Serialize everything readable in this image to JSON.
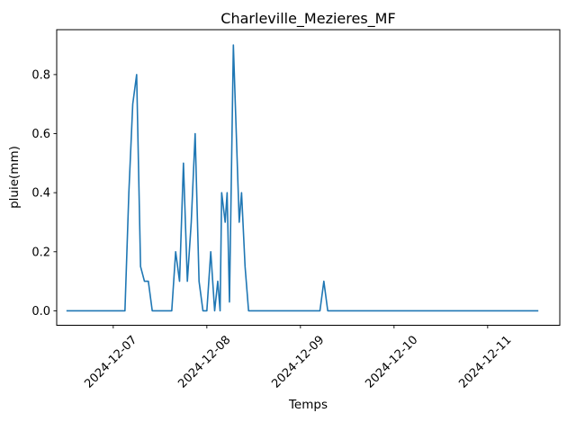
{
  "chart_data": {
    "type": "line",
    "title": "Charleville_Mezieres_MF",
    "xlabel": "Temps",
    "ylabel": "pluie(mm)",
    "line_color": "#1f77b4",
    "background_color": "#ffffff",
    "spine_color": "#000000",
    "grid": false,
    "legend": null,
    "x_unit": "hours since 2024-12-07 00:00",
    "xlim_hours": [
      -14.5,
      114.5
    ],
    "ylim": [
      -0.049,
      0.952
    ],
    "x_tick_hours": [
      0,
      24,
      48,
      72,
      96
    ],
    "x_tick_labels": [
      "2024-12-07",
      "2024-12-08",
      "2024-12-09",
      "2024-12-10",
      "2024-12-11"
    ],
    "x_tick_rotation_deg": 45,
    "y_ticks": [
      0.0,
      0.2,
      0.4,
      0.6,
      0.8
    ],
    "y_tick_labels": [
      "0.0",
      "0.2",
      "0.4",
      "0.6",
      "0.8"
    ],
    "series_name": "pluie",
    "points": [
      [
        -12,
        0
      ],
      [
        3,
        0
      ],
      [
        4,
        0.4
      ],
      [
        5,
        0.7
      ],
      [
        6,
        0.8
      ],
      [
        7,
        0.15
      ],
      [
        8,
        0.1
      ],
      [
        9,
        0.1
      ],
      [
        10,
        0
      ],
      [
        15,
        0
      ],
      [
        16,
        0.2
      ],
      [
        17,
        0.1
      ],
      [
        18,
        0.5
      ],
      [
        19,
        0.1
      ],
      [
        20,
        0.3
      ],
      [
        21,
        0.6
      ],
      [
        22,
        0.1
      ],
      [
        23,
        0
      ],
      [
        24,
        0
      ],
      [
        25,
        0.2
      ],
      [
        26,
        0
      ],
      [
        26.8,
        0.1
      ],
      [
        27.4,
        0
      ],
      [
        27.8,
        0.4
      ],
      [
        28.7,
        0.3
      ],
      [
        29.2,
        0.4
      ],
      [
        29.8,
        0.03
      ],
      [
        30.8,
        0.9
      ],
      [
        32.3,
        0.3
      ],
      [
        32.9,
        0.4
      ],
      [
        33.8,
        0.15
      ],
      [
        34.7,
        0
      ],
      [
        53,
        0
      ],
      [
        54,
        0.1
      ],
      [
        55,
        0
      ],
      [
        109,
        0
      ]
    ]
  }
}
